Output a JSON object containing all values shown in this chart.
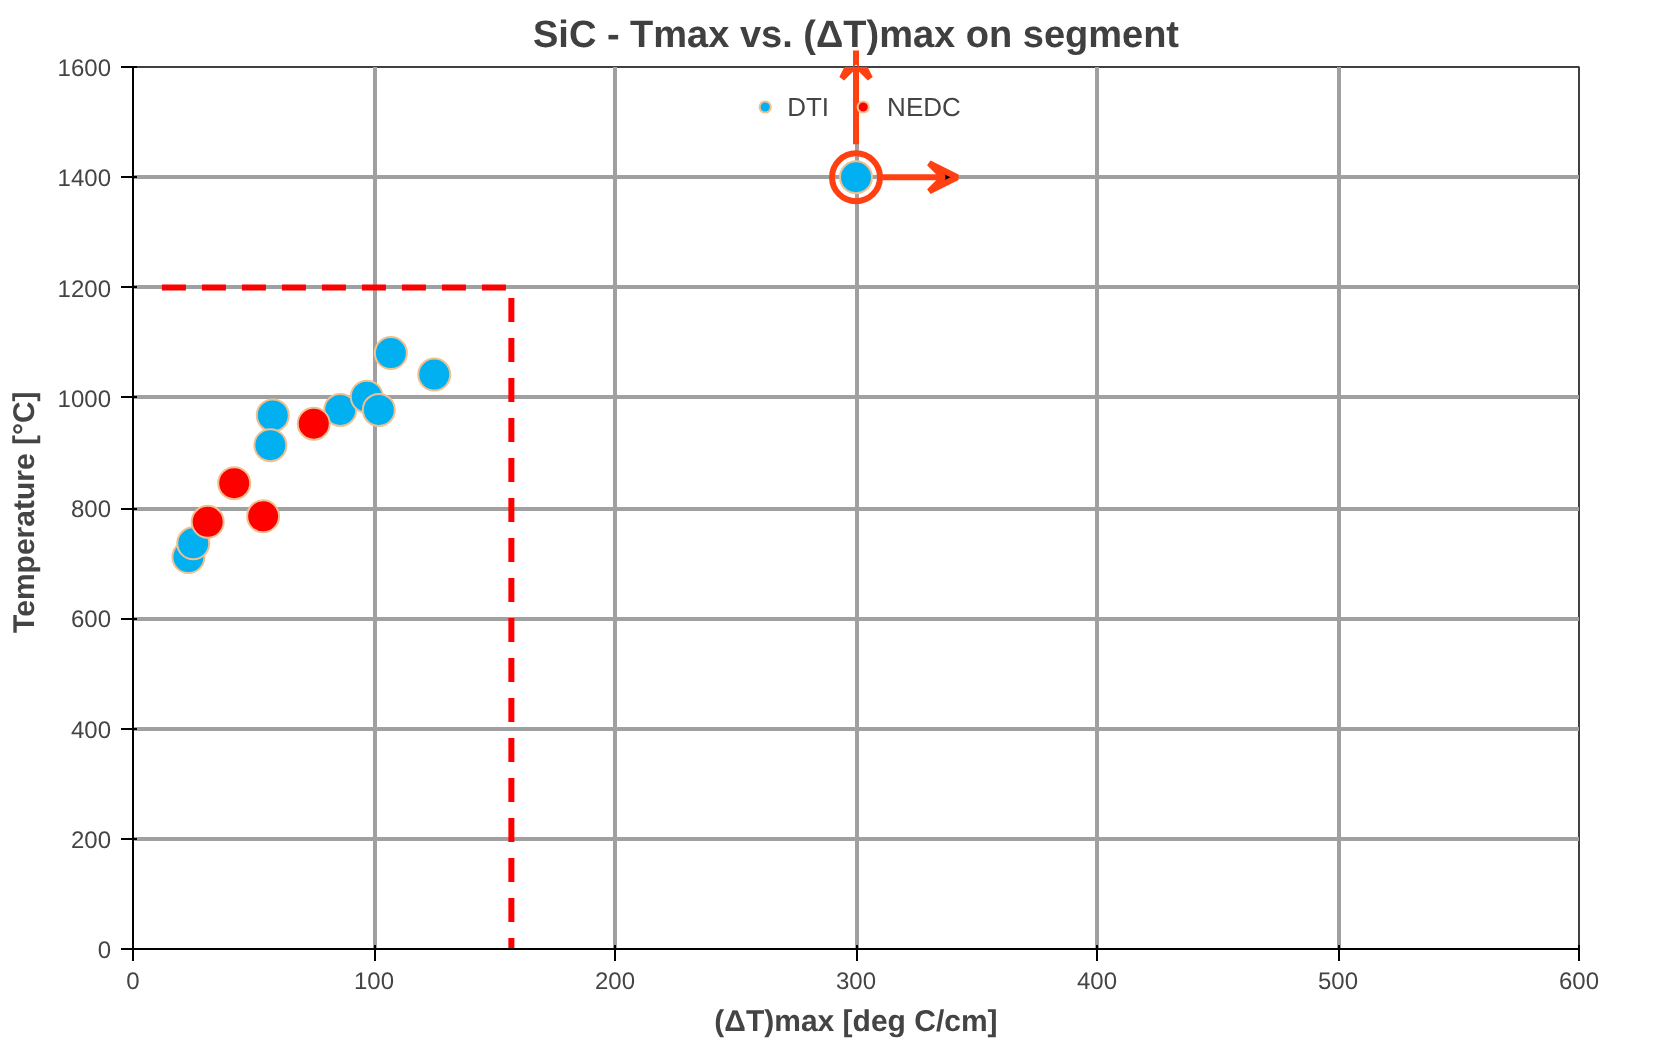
{
  "chart_data": {
    "type": "scatter",
    "title": "SiC - Tmax vs. (ΔT)max on segment",
    "xlabel": "(ΔT)max [deg C/cm]",
    "ylabel": "Temperature  [°C]",
    "xlim": [
      0,
      600
    ],
    "xticks": [
      0,
      100,
      200,
      300,
      400,
      500,
      600
    ],
    "ylim": [
      0,
      1600
    ],
    "yticks": [
      0,
      200,
      400,
      600,
      800,
      1000,
      1200,
      1400,
      1600
    ],
    "grid": true,
    "legend": "top",
    "marker": "circle",
    "series": [
      {
        "name": "DTI",
        "color": "#00b0f0",
        "x": [
          23,
          25,
          58,
          57,
          86,
          97,
          102,
          107,
          125,
          300
        ],
        "values": [
          711,
          736,
          968,
          914,
          978,
          1002,
          978,
          1081,
          1042,
          1400
        ]
      },
      {
        "name": "NEDC",
        "color": "#ff0000",
        "x": [
          31,
          42,
          54,
          75
        ],
        "values": [
          775,
          845,
          785,
          953
        ]
      },
      {
        "type": "line",
        "color": "#ff0000",
        "line_style": "dashed",
        "marker": "none",
        "x": [
          12,
          157,
          157
        ],
        "values": [
          1200,
          1200,
          0
        ]
      }
    ]
  }
}
